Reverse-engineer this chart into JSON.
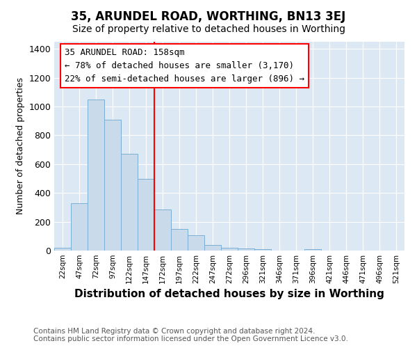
{
  "title": "35, ARUNDEL ROAD, WORTHING, BN13 3EJ",
  "subtitle": "Size of property relative to detached houses in Worthing",
  "xlabel": "Distribution of detached houses by size in Worthing",
  "ylabel": "Number of detached properties",
  "bar_color": "#c9daea",
  "bar_edge_color": "#7aafd4",
  "categories": [
    "22sqm",
    "47sqm",
    "72sqm",
    "97sqm",
    "122sqm",
    "147sqm",
    "172sqm",
    "197sqm",
    "222sqm",
    "247sqm",
    "272sqm",
    "296sqm",
    "321sqm",
    "346sqm",
    "371sqm",
    "396sqm",
    "421sqm",
    "446sqm",
    "471sqm",
    "496sqm",
    "521sqm"
  ],
  "values": [
    20,
    330,
    1050,
    910,
    670,
    500,
    285,
    150,
    105,
    40,
    20,
    15,
    10,
    0,
    0,
    10,
    0,
    0,
    0,
    0,
    0
  ],
  "ylim": [
    0,
    1450
  ],
  "yticks": [
    0,
    200,
    400,
    600,
    800,
    1000,
    1200,
    1400
  ],
  "red_line_x": 6,
  "annotation_line1": "35 ARUNDEL ROAD: 158sqm",
  "annotation_line2": "← 78% of detached houses are smaller (3,170)",
  "annotation_line3": "22% of semi-detached houses are larger (896) →",
  "footer_line1": "Contains HM Land Registry data © Crown copyright and database right 2024.",
  "footer_line2": "Contains public sector information licensed under the Open Government Licence v3.0.",
  "background_color": "#ffffff",
  "plot_bg_color": "#dde8f5",
  "grid_color": "#ffffff",
  "title_fontsize": 12,
  "subtitle_fontsize": 10,
  "xlabel_fontsize": 11,
  "ylabel_fontsize": 9,
  "annot_fontsize": 9,
  "footer_fontsize": 7.5
}
